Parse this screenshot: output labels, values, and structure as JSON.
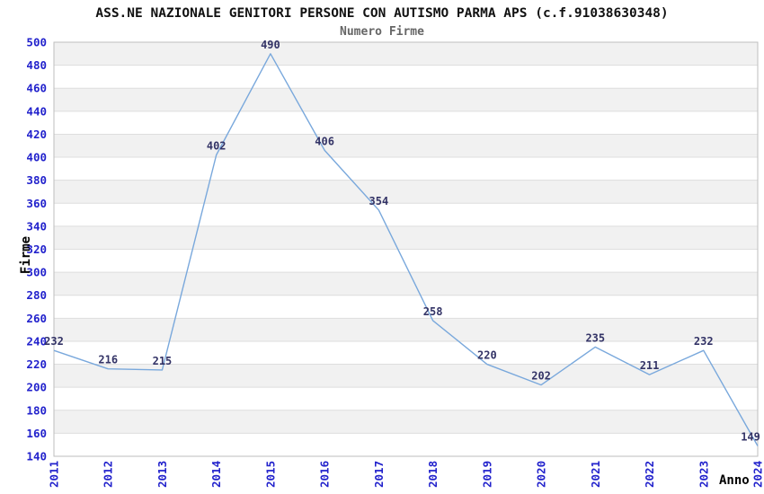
{
  "window": {
    "background": "#FFFFFF"
  },
  "chart_data": {
    "type": "line",
    "title": "ASS.NE NAZIONALE GENITORI PERSONE CON AUTISMO PARMA APS (c.f.91038630348)",
    "subtitle": "Numero Firme",
    "xlabel": "Anno",
    "ylabel": "Firme",
    "categories": [
      "2011",
      "2012",
      "2013",
      "2014",
      "2015",
      "2016",
      "2017",
      "2018",
      "2019",
      "2020",
      "2021",
      "2022",
      "2023",
      "2024"
    ],
    "values": [
      232,
      216,
      215,
      402,
      490,
      406,
      354,
      258,
      220,
      202,
      235,
      211,
      232,
      149
    ],
    "ylim": [
      140,
      500
    ],
    "ytick_step": 20,
    "grid": "horizontal-alternating-bands",
    "legend": "none",
    "point_labels": "values-above-points",
    "colors": {
      "line": "#79A8DC",
      "tick_label": "#2222CC",
      "value_label": "#333366",
      "band": "#F1F1F1",
      "grid": "#DEDEDE",
      "border": "#BEBEBE",
      "title": "#111111",
      "subtitle": "#666666",
      "axis_title": "#000000"
    }
  }
}
